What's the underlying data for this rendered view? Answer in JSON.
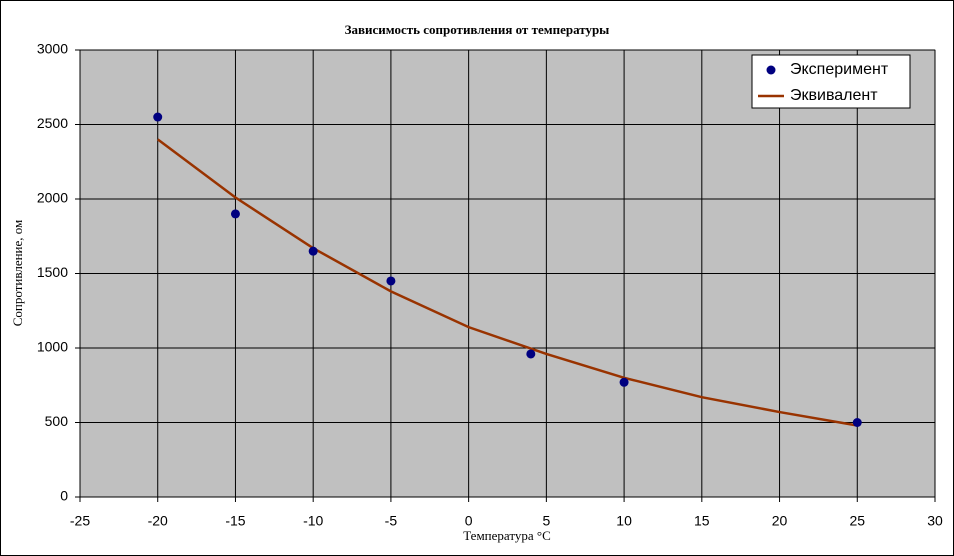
{
  "chart_data": {
    "type": "scatter",
    "title": "Зависимость сопротивления от температуры",
    "x_label": "Температура °C",
    "y_label": "Сопротивление, ом",
    "xlim": [
      -25,
      30
    ],
    "xticks": [
      -25,
      -20,
      -15,
      -10,
      -5,
      0,
      5,
      10,
      15,
      20,
      25,
      30
    ],
    "ylim": [
      0,
      3000
    ],
    "yticks": [
      0,
      500,
      1000,
      1500,
      2000,
      2500,
      3000
    ],
    "grid": true,
    "legend": "upper right",
    "series": [
      {
        "name": "Эксперимент",
        "mode": "markers",
        "color": "#000080",
        "x": [
          -20,
          -15,
          -10,
          -5,
          4,
          10,
          25
        ],
        "values": [
          2550,
          1900,
          1650,
          1450,
          960,
          770,
          500
        ]
      },
      {
        "name": "Эквивалент",
        "mode": "line",
        "color": "#993300",
        "x": [
          -20,
          -15,
          -10,
          -5,
          0,
          5,
          10,
          15,
          20,
          25
        ],
        "values": [
          2400,
          2010,
          1670,
          1380,
          1140,
          960,
          800,
          670,
          570,
          480
        ]
      }
    ]
  }
}
